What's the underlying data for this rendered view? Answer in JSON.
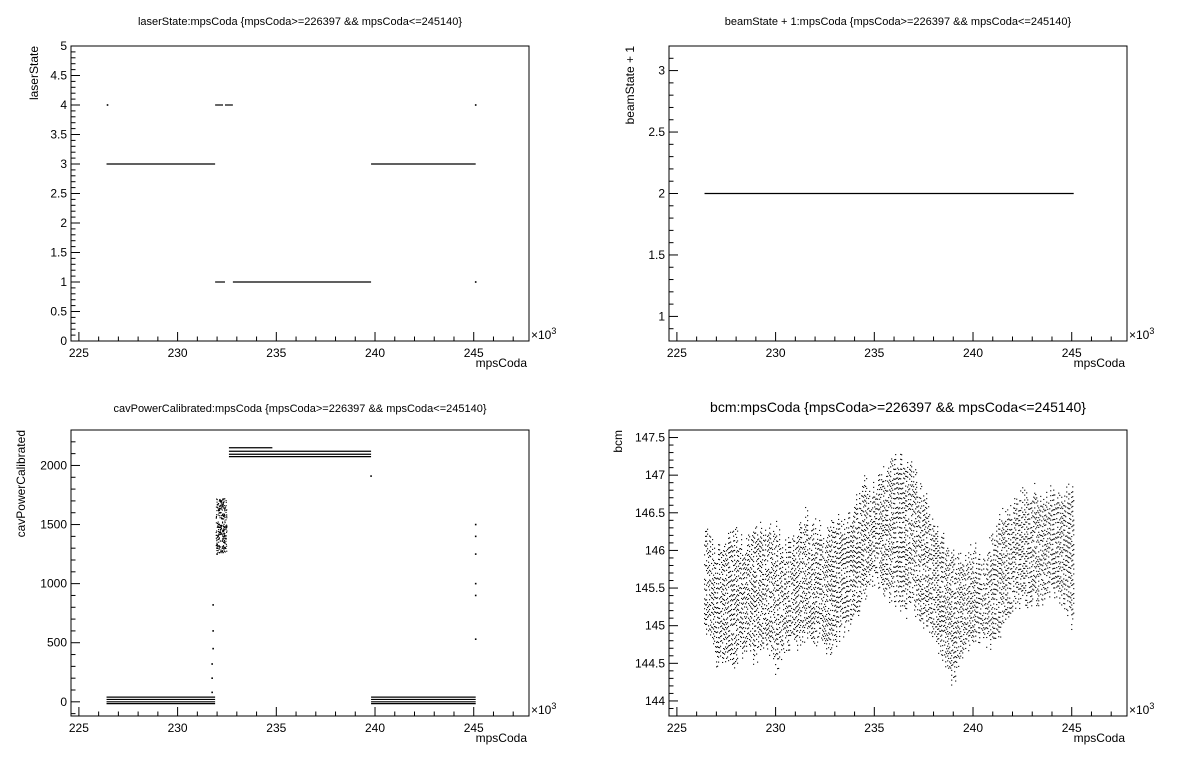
{
  "chart_data": [
    {
      "type": "scatter",
      "title": "laserState:mpsCoda {mpsCoda>=226397 && mpsCoda<=245140}",
      "xlabel": "mpsCoda",
      "ylabel": "laserState",
      "x_multiplier": "×10",
      "x_exponent": "3",
      "xlim": [
        224.6,
        247.8
      ],
      "ylim": [
        0,
        5
      ],
      "xticks": [
        "225",
        "230",
        "235",
        "240",
        "245"
      ],
      "yticks": [
        "0",
        "0.5",
        "1",
        "1.5",
        "2",
        "2.5",
        "3",
        "3.5",
        "4",
        "4.5",
        "5"
      ],
      "grid": false,
      "segments": [
        {
          "x": [
            226.4,
            231.9
          ],
          "y": 3
        },
        {
          "x": [
            239.8,
            245.1
          ],
          "y": 3
        },
        {
          "x": [
            232.8,
            239.8
          ],
          "y": 1
        },
        {
          "x": [
            231.9,
            232.4
          ],
          "y": 1
        },
        {
          "x": [
            231.9,
            232.3
          ],
          "y": 4
        },
        {
          "x": [
            232.4,
            232.8
          ],
          "y": 4
        }
      ],
      "points": [
        [
          226.45,
          4
        ],
        [
          245.1,
          4
        ],
        [
          245.1,
          1
        ]
      ]
    },
    {
      "type": "scatter",
      "title": "beamState + 1:mpsCoda {mpsCoda>=226397 && mpsCoda<=245140}",
      "xlabel": "mpsCoda",
      "ylabel": "beamState + 1",
      "x_multiplier": "×10",
      "x_exponent": "3",
      "xlim": [
        224.6,
        247.8
      ],
      "ylim": [
        0.8,
        3.2
      ],
      "xticks": [
        "225",
        "230",
        "235",
        "240",
        "245"
      ],
      "yticks": [
        "1",
        "1.5",
        "2",
        "2.5",
        "3"
      ],
      "grid": false,
      "segments": [
        {
          "x": [
            226.4,
            245.1
          ],
          "y": 2
        }
      ],
      "points": []
    },
    {
      "type": "scatter",
      "title": "cavPowerCalibrated:mpsCoda {mpsCoda>=226397 && mpsCoda<=245140}",
      "xlabel": "mpsCoda",
      "ylabel": "cavPowerCalibrated",
      "x_multiplier": "×10",
      "x_exponent": "3",
      "xlim": [
        224.6,
        247.8
      ],
      "ylim": [
        -120,
        2300
      ],
      "xticks": [
        "225",
        "230",
        "235",
        "240",
        "245"
      ],
      "yticks": [
        "0",
        "500",
        "1000",
        "1500",
        "2000"
      ],
      "grid": false,
      "segments": [
        {
          "x": [
            226.4,
            231.9
          ],
          "y": 40
        },
        {
          "x": [
            226.4,
            231.9
          ],
          "y": 20
        },
        {
          "x": [
            226.4,
            231.9
          ],
          "y": 0
        },
        {
          "x": [
            226.4,
            231.9
          ],
          "y": -15
        },
        {
          "x": [
            239.8,
            245.1
          ],
          "y": 40
        },
        {
          "x": [
            239.8,
            245.1
          ],
          "y": 20
        },
        {
          "x": [
            239.8,
            245.1
          ],
          "y": 0
        },
        {
          "x": [
            239.8,
            245.1
          ],
          "y": -15
        },
        {
          "x": [
            232.6,
            239.8
          ],
          "y": 2120
        },
        {
          "x": [
            232.6,
            239.8
          ],
          "y": 2095
        },
        {
          "x": [
            232.6,
            239.8
          ],
          "y": 2075
        },
        {
          "x": [
            232.6,
            234.8
          ],
          "y": 2150
        }
      ],
      "points": [
        [
          231.75,
          80
        ],
        [
          231.75,
          200
        ],
        [
          231.75,
          320
        ],
        [
          231.8,
          450
        ],
        [
          231.8,
          600
        ],
        [
          231.8,
          820
        ],
        [
          232.0,
          1300
        ],
        [
          232.05,
          1400
        ],
        [
          232.1,
          1500
        ],
        [
          232.15,
          1600
        ],
        [
          232.2,
          1700
        ],
        [
          232.25,
          1550
        ],
        [
          232.3,
          1450
        ],
        [
          232.35,
          1350
        ],
        [
          232.4,
          1300
        ],
        [
          232.45,
          1380
        ],
        [
          232.0,
          1250
        ],
        [
          232.2,
          1420
        ],
        [
          239.8,
          1910
        ],
        [
          245.1,
          1500
        ],
        [
          245.1,
          1400
        ],
        [
          245.1,
          1250
        ],
        [
          245.1,
          1000
        ],
        [
          245.1,
          900
        ],
        [
          245.1,
          530
        ]
      ],
      "bands": [
        {
          "x": [
            231.95,
            232.5
          ],
          "y": [
            1260,
            1720
          ]
        }
      ]
    },
    {
      "type": "scatter",
      "title": "bcm:mpsCoda {mpsCoda>=226397 && mpsCoda<=245140}",
      "xlabel": "mpsCoda",
      "ylabel": "bcm",
      "x_multiplier": "×10",
      "x_exponent": "3",
      "xlim": [
        224.6,
        247.8
      ],
      "ylim": [
        143.8,
        147.6
      ],
      "xticks": [
        "225",
        "230",
        "235",
        "240",
        "245"
      ],
      "yticks": [
        "144",
        "144.5",
        "145",
        "145.5",
        "146",
        "146.5",
        "147",
        "147.5"
      ],
      "grid": false,
      "segments": [],
      "points": [],
      "envelope": {
        "x": [
          226.4,
          227.0,
          227.5,
          228.0,
          228.5,
          229.0,
          229.5,
          230.0,
          230.5,
          231.0,
          231.5,
          232.0,
          232.5,
          233.0,
          233.5,
          234.0,
          234.5,
          235.0,
          235.5,
          236.0,
          236.5,
          237.0,
          237.5,
          238.0,
          238.5,
          239.0,
          239.5,
          240.0,
          240.5,
          241.0,
          241.5,
          242.0,
          242.5,
          243.0,
          243.5,
          244.0,
          244.5,
          245.1
        ],
        "low": [
          145.0,
          144.6,
          144.5,
          144.6,
          144.7,
          144.6,
          144.8,
          144.5,
          144.7,
          144.8,
          144.9,
          144.9,
          144.7,
          144.8,
          145.0,
          145.1,
          145.4,
          145.6,
          145.5,
          145.4,
          145.2,
          145.3,
          145.1,
          144.9,
          144.6,
          144.3,
          144.7,
          144.8,
          144.9,
          144.8,
          145.0,
          145.3,
          145.4,
          145.3,
          145.4,
          145.5,
          145.4,
          145.0
        ],
        "high": [
          146.2,
          146.0,
          146.1,
          146.2,
          146.0,
          146.3,
          146.2,
          146.3,
          146.0,
          146.2,
          146.4,
          146.3,
          146.2,
          146.4,
          146.3,
          146.6,
          146.9,
          146.8,
          147.0,
          147.2,
          147.1,
          147.0,
          146.7,
          146.4,
          146.1,
          145.9,
          145.9,
          146.0,
          145.8,
          146.2,
          146.4,
          146.5,
          146.7,
          146.8,
          146.6,
          146.8,
          146.7,
          146.9
        ]
      }
    }
  ]
}
